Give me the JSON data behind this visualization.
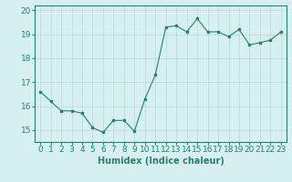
{
  "x": [
    0,
    1,
    2,
    3,
    4,
    5,
    6,
    7,
    8,
    9,
    10,
    11,
    12,
    13,
    14,
    15,
    16,
    17,
    18,
    19,
    20,
    21,
    22,
    23
  ],
  "y": [
    16.6,
    16.2,
    15.8,
    15.8,
    15.7,
    15.1,
    14.9,
    15.4,
    15.4,
    14.95,
    16.3,
    17.3,
    19.3,
    19.35,
    19.1,
    19.65,
    19.1,
    19.1,
    18.9,
    19.2,
    18.55,
    18.65,
    18.75,
    19.1
  ],
  "xlabel": "Humidex (Indice chaleur)",
  "ylim": [
    14.5,
    20.2
  ],
  "xlim": [
    -0.5,
    23.5
  ],
  "yticks": [
    15,
    16,
    17,
    18,
    19,
    20
  ],
  "xticks": [
    0,
    1,
    2,
    3,
    4,
    5,
    6,
    7,
    8,
    9,
    10,
    11,
    12,
    13,
    14,
    15,
    16,
    17,
    18,
    19,
    20,
    21,
    22,
    23
  ],
  "line_color": "#2e7d6e",
  "marker": "s",
  "marker_size": 2,
  "bg_color": "#d6f0ef",
  "grid_color": "#b8d8d6",
  "tick_color": "#2e7d6e",
  "xlabel_color": "#2e7d6e",
  "xlabel_fontsize": 7,
  "tick_fontsize": 6.5,
  "linewidth": 0.8
}
